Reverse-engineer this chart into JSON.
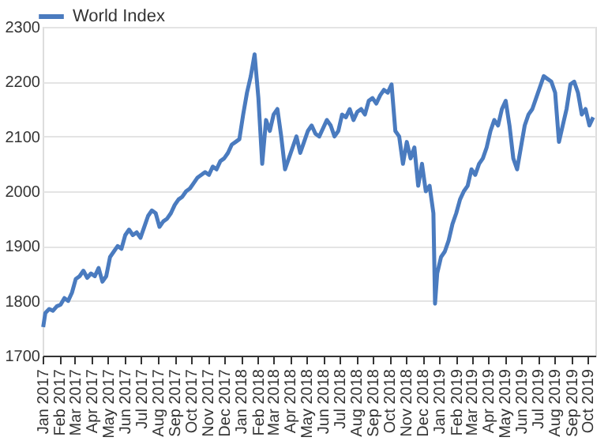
{
  "chart_data": {
    "type": "line",
    "legend": "top left",
    "grid": "y",
    "marker": "none",
    "line_style": "solid",
    "x": [
      "2017-01-02",
      "2017-01-06",
      "2017-01-13",
      "2017-01-20",
      "2017-01-27",
      "2017-02-03",
      "2017-02-10",
      "2017-02-17",
      "2017-02-24",
      "2017-03-03",
      "2017-03-10",
      "2017-03-17",
      "2017-03-24",
      "2017-03-31",
      "2017-04-07",
      "2017-04-14",
      "2017-04-21",
      "2017-04-28",
      "2017-05-05",
      "2017-05-12",
      "2017-05-19",
      "2017-05-26",
      "2017-06-02",
      "2017-06-09",
      "2017-06-16",
      "2017-06-23",
      "2017-06-30",
      "2017-07-07",
      "2017-07-14",
      "2017-07-21",
      "2017-07-28",
      "2017-08-04",
      "2017-08-11",
      "2017-08-18",
      "2017-08-25",
      "2017-09-01",
      "2017-09-08",
      "2017-09-15",
      "2017-09-22",
      "2017-09-29",
      "2017-10-06",
      "2017-10-13",
      "2017-10-20",
      "2017-10-27",
      "2017-11-03",
      "2017-11-10",
      "2017-11-17",
      "2017-11-24",
      "2017-12-01",
      "2017-12-08",
      "2017-12-15",
      "2017-12-22",
      "2017-12-29",
      "2018-01-05",
      "2018-01-12",
      "2018-01-19",
      "2018-01-26",
      "2018-02-02",
      "2018-02-09",
      "2018-02-16",
      "2018-02-23",
      "2018-03-02",
      "2018-03-09",
      "2018-03-16",
      "2018-03-23",
      "2018-03-30",
      "2018-04-06",
      "2018-04-13",
      "2018-04-20",
      "2018-04-27",
      "2018-05-04",
      "2018-05-11",
      "2018-05-18",
      "2018-05-25",
      "2018-06-01",
      "2018-06-08",
      "2018-06-15",
      "2018-06-22",
      "2018-06-29",
      "2018-07-06",
      "2018-07-13",
      "2018-07-20",
      "2018-07-27",
      "2018-08-03",
      "2018-08-10",
      "2018-08-17",
      "2018-08-24",
      "2018-08-31",
      "2018-09-07",
      "2018-09-14",
      "2018-09-21",
      "2018-09-28",
      "2018-10-05",
      "2018-10-12",
      "2018-10-19",
      "2018-10-26",
      "2018-11-02",
      "2018-11-09",
      "2018-11-16",
      "2018-11-23",
      "2018-11-30",
      "2018-12-07",
      "2018-12-14",
      "2018-12-21",
      "2018-12-24",
      "2018-12-28",
      "2019-01-04",
      "2019-01-11",
      "2019-01-18",
      "2019-01-25",
      "2019-02-01",
      "2019-02-08",
      "2019-02-15",
      "2019-02-22",
      "2019-03-01",
      "2019-03-08",
      "2019-03-15",
      "2019-03-22",
      "2019-03-29",
      "2019-04-05",
      "2019-04-12",
      "2019-04-19",
      "2019-04-26",
      "2019-05-03",
      "2019-05-10",
      "2019-05-17",
      "2019-05-24",
      "2019-05-31",
      "2019-06-07",
      "2019-06-14",
      "2019-06-21",
      "2019-06-28",
      "2019-07-05",
      "2019-07-12",
      "2019-07-19",
      "2019-07-26",
      "2019-08-02",
      "2019-08-09",
      "2019-08-16",
      "2019-08-23",
      "2019-08-30",
      "2019-09-06",
      "2019-09-13",
      "2019-09-20",
      "2019-09-27",
      "2019-10-04",
      "2019-10-11"
    ],
    "series": [
      {
        "name": "World Index",
        "color": "#4a7bbf",
        "values": [
          1752,
          1778,
          1785,
          1782,
          1790,
          1793,
          1805,
          1800,
          1815,
          1840,
          1845,
          1855,
          1842,
          1850,
          1845,
          1860,
          1835,
          1845,
          1880,
          1890,
          1900,
          1895,
          1920,
          1930,
          1920,
          1925,
          1915,
          1935,
          1955,
          1965,
          1960,
          1935,
          1945,
          1950,
          1960,
          1975,
          1985,
          1990,
          2000,
          2005,
          2015,
          2025,
          2030,
          2035,
          2030,
          2045,
          2040,
          2055,
          2060,
          2070,
          2085,
          2090,
          2095,
          2140,
          2180,
          2210,
          2250,
          2170,
          2050,
          2130,
          2110,
          2140,
          2150,
          2100,
          2040,
          2060,
          2080,
          2100,
          2070,
          2090,
          2110,
          2120,
          2105,
          2100,
          2115,
          2130,
          2120,
          2100,
          2110,
          2140,
          2135,
          2150,
          2130,
          2145,
          2150,
          2140,
          2165,
          2170,
          2160,
          2175,
          2185,
          2180,
          2195,
          2110,
          2100,
          2050,
          2090,
          2060,
          2080,
          2010,
          2050,
          2000,
          2010,
          1960,
          1795,
          1850,
          1880,
          1890,
          1910,
          1940,
          1960,
          1985,
          2000,
          2010,
          2040,
          2030,
          2050,
          2060,
          2080,
          2110,
          2130,
          2120,
          2150,
          2165,
          2120,
          2060,
          2040,
          2080,
          2120,
          2140,
          2150,
          2170,
          2190,
          2210,
          2205,
          2200,
          2180,
          2090,
          2120,
          2150,
          2195,
          2200,
          2180,
          2140,
          2150,
          2120,
          2135
        ]
      }
    ],
    "xlim": [
      "2017-01-01",
      "2019-10-15"
    ],
    "xticks": [
      {
        "value": "2017-01",
        "label": "Jan 2017"
      },
      {
        "value": "2017-02",
        "label": "Feb 2017"
      },
      {
        "value": "2017-03",
        "label": "Mar 2017"
      },
      {
        "value": "2017-04",
        "label": "Apr 2017"
      },
      {
        "value": "2017-05",
        "label": "May 2017"
      },
      {
        "value": "2017-06",
        "label": "Jun 2017"
      },
      {
        "value": "2017-07",
        "label": "Jul 2017"
      },
      {
        "value": "2017-08",
        "label": "Aug 2017"
      },
      {
        "value": "2017-09",
        "label": "Sep 2017"
      },
      {
        "value": "2017-10",
        "label": "Oct 2017"
      },
      {
        "value": "2017-11",
        "label": "Nov 2017"
      },
      {
        "value": "2017-12",
        "label": "Dec 2017"
      },
      {
        "value": "2018-01",
        "label": "Jan 2018"
      },
      {
        "value": "2018-02",
        "label": "Feb 2018"
      },
      {
        "value": "2018-03",
        "label": "Mar 2018"
      },
      {
        "value": "2018-04",
        "label": "Apr 2018"
      },
      {
        "value": "2018-05",
        "label": "May 2018"
      },
      {
        "value": "2018-06",
        "label": "Jun 2018"
      },
      {
        "value": "2018-07",
        "label": "Jul 2018"
      },
      {
        "value": "2018-08",
        "label": "Aug 2018"
      },
      {
        "value": "2018-09",
        "label": "Sep 2018"
      },
      {
        "value": "2018-10",
        "label": "Oct 2018"
      },
      {
        "value": "2018-11",
        "label": "Nov 2018"
      },
      {
        "value": "2018-12",
        "label": "Dec 2018"
      },
      {
        "value": "2019-01",
        "label": "Jan 2019"
      },
      {
        "value": "2019-02",
        "label": "Feb 2019"
      },
      {
        "value": "2019-03",
        "label": "Mar 2019"
      },
      {
        "value": "2019-04",
        "label": "Apr 2019"
      },
      {
        "value": "2019-05",
        "label": "May 2019"
      },
      {
        "value": "2019-06",
        "label": "Jun 2019"
      },
      {
        "value": "2019-07",
        "label": "Jul 2019"
      },
      {
        "value": "2019-08",
        "label": "Aug 2019"
      },
      {
        "value": "2019-09",
        "label": "Sep 2019"
      },
      {
        "value": "2019-10",
        "label": "Oct 2019"
      }
    ],
    "ylim": [
      1700,
      2300
    ],
    "yticks": [
      1700,
      1800,
      1900,
      2000,
      2100,
      2200,
      2300
    ]
  }
}
